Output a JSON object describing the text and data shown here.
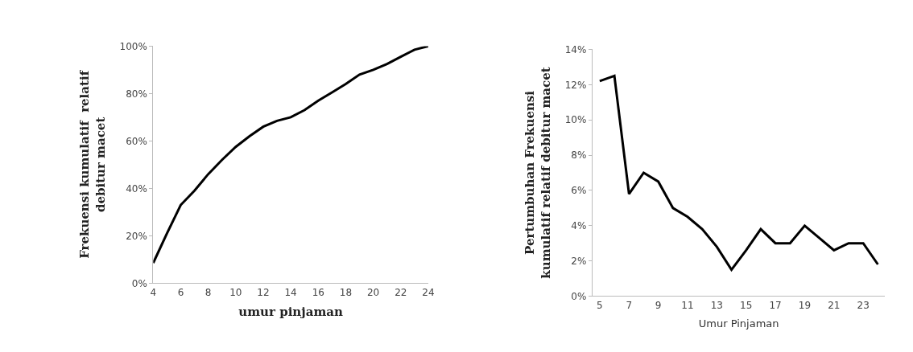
{
  "chart_data": [
    {
      "type": "line",
      "xlabel": "umur pinjaman",
      "ylabel": "Frekuensi kumulatif  relatif\ndebitur macet",
      "x": [
        4,
        5,
        6,
        7,
        8,
        9,
        10,
        11,
        12,
        13,
        14,
        15,
        16,
        17,
        18,
        19,
        20,
        21,
        22,
        23,
        24
      ],
      "series": [
        {
          "color": "#000000",
          "values": [
            8.5,
            21,
            33,
            39,
            46,
            52,
            57.5,
            62,
            66,
            68.5,
            70,
            73,
            77,
            80.5,
            84,
            88,
            90,
            92.5,
            95.5,
            98.5,
            100
          ]
        }
      ],
      "xlim": [
        4,
        24
      ],
      "xticks": [
        4,
        6,
        8,
        10,
        12,
        14,
        16,
        18,
        20,
        22,
        24
      ],
      "ylim": [
        0,
        100
      ],
      "yticks": [
        {
          "value": 0,
          "label": "0%"
        },
        {
          "value": 20,
          "label": "20%"
        },
        {
          "value": 40,
          "label": "40%"
        },
        {
          "value": 60,
          "label": "60%"
        },
        {
          "value": 80,
          "label": "80%"
        },
        {
          "value": 100,
          "label": "100%"
        }
      ],
      "marker": "none",
      "line_style": "solid"
    },
    {
      "type": "line",
      "xlabel": "Umur Pinjaman",
      "ylabel": "Pertumbuhan Frekuensi\nkumulatif relatif debitur macet",
      "x": [
        5,
        6,
        7,
        8,
        9,
        10,
        11,
        12,
        13,
        14,
        15,
        16,
        17,
        18,
        19,
        20,
        21,
        22,
        23,
        24
      ],
      "series": [
        {
          "color": "#000000",
          "values": [
            12.2,
            12.5,
            5.8,
            7.0,
            6.5,
            5.0,
            4.5,
            3.8,
            2.8,
            1.5,
            2.6,
            3.8,
            3.0,
            3.0,
            4.0,
            3.3,
            2.6,
            3.0,
            3.0,
            1.8
          ]
        }
      ],
      "xlim": [
        4.5,
        24.5
      ],
      "xticks": [
        5,
        7,
        9,
        11,
        13,
        15,
        17,
        19,
        21,
        23
      ],
      "ylim": [
        0,
        14
      ],
      "yticks": [
        {
          "value": 0,
          "label": "0%"
        },
        {
          "value": 2,
          "label": "2%"
        },
        {
          "value": 4,
          "label": "4%"
        },
        {
          "value": 6,
          "label": "6%"
        },
        {
          "value": 8,
          "label": "8%"
        },
        {
          "value": 10,
          "label": "10%"
        },
        {
          "value": 12,
          "label": "12%"
        },
        {
          "value": 14,
          "label": "14%"
        }
      ],
      "marker": "none",
      "line_style": "solid"
    }
  ]
}
